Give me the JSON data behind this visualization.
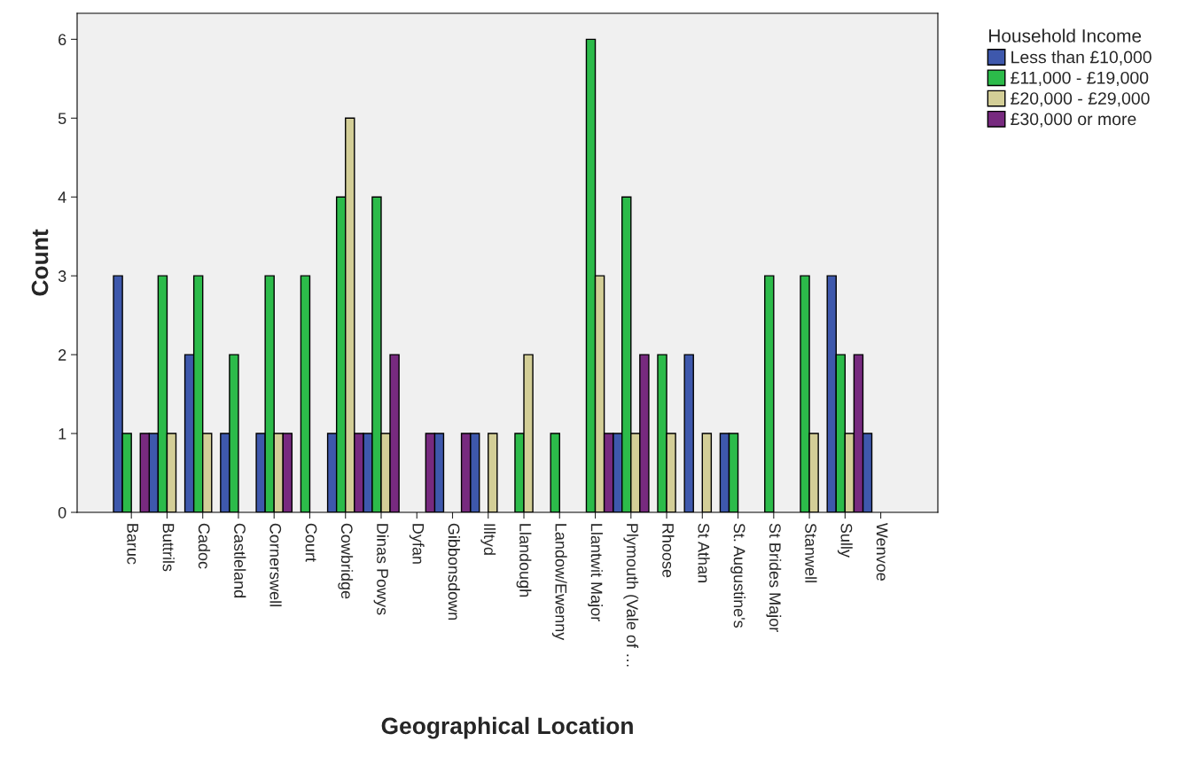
{
  "chart_data": {
    "type": "bar",
    "xlabel": "Geographical Location",
    "ylabel": "Count",
    "legend_title": "Household Income",
    "categories": [
      "Baruc",
      "Buttrils",
      "Cadoc",
      "Castleland",
      "Cornerswell",
      "Court",
      "Cowbridge",
      "Dinas Powys",
      "Dyfan",
      "Gibbonsdown",
      "Illtyd",
      "Llandough",
      "Landow/Ewenny",
      "Llantwit Major",
      "Plymouth (Vale of …",
      "Rhoose",
      "St Athan",
      "St. Augustine's",
      "St Brides Major",
      "Stanwell",
      "Sully",
      "Wenvoe"
    ],
    "series": [
      {
        "name": "Less than £10,000",
        "color": "#3e58ac",
        "values": [
          3,
          1,
          2,
          1,
          1,
          0,
          1,
          1,
          0,
          1,
          1,
          0,
          0,
          0,
          1,
          0,
          2,
          1,
          0,
          0,
          3,
          1
        ]
      },
      {
        "name": "£11,000 - £19,000",
        "color": "#2cbb4a",
        "values": [
          1,
          3,
          3,
          2,
          3,
          3,
          4,
          4,
          0,
          0,
          0,
          1,
          1,
          6,
          4,
          2,
          0,
          1,
          3,
          3,
          2,
          0
        ]
      },
      {
        "name": "£20,000 - £29,000",
        "color": "#d3ce97",
        "values": [
          0,
          1,
          1,
          0,
          1,
          0,
          5,
          1,
          0,
          0,
          1,
          2,
          0,
          3,
          1,
          1,
          1,
          0,
          0,
          1,
          1,
          0
        ]
      },
      {
        "name": "£30,000 or more",
        "color": "#772a7f",
        "values": [
          1,
          0,
          0,
          0,
          1,
          0,
          1,
          2,
          1,
          1,
          0,
          0,
          0,
          1,
          2,
          0,
          0,
          0,
          0,
          0,
          2,
          0
        ]
      }
    ],
    "ylim": [
      0,
      6.33
    ],
    "yticks": [
      0,
      1,
      2,
      3,
      4,
      5,
      6
    ],
    "grid": false,
    "legend": "top right"
  }
}
